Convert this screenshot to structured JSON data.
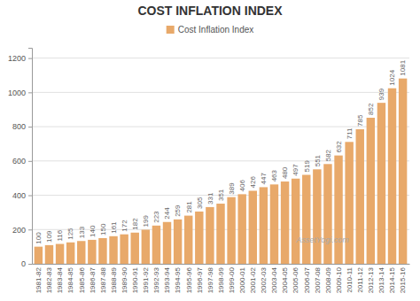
{
  "chart_data": {
    "type": "bar",
    "title": "COST INFLATION INDEX",
    "categories": [
      "1981-82",
      "1982-83",
      "1983-84",
      "1984-85",
      "1985-86",
      "1986-87",
      "1987-88",
      "1988-89",
      "1989-90",
      "1990-91",
      "1991-92",
      "1992-93",
      "1993-94",
      "1994-95",
      "1995-96",
      "1996-97",
      "1997-98",
      "1998-99",
      "1999-00",
      "2000-01",
      "2001-02",
      "2002-03",
      "2003-04",
      "2004-05",
      "2005-06",
      "2006-07",
      "2007-08",
      "2008-09",
      "2009-10",
      "2010-11",
      "2011-12",
      "2012-13",
      "2013-14",
      "2014-15",
      "2015-16"
    ],
    "series": [
      {
        "name": "Cost Inflation Index",
        "color": "#E8A96A",
        "values": [
          100,
          109,
          116,
          125,
          133,
          140,
          150,
          161,
          172,
          182,
          199,
          223,
          244,
          259,
          281,
          305,
          331,
          351,
          389,
          406,
          426,
          447,
          463,
          480,
          497,
          519,
          551,
          582,
          632,
          711,
          785,
          852,
          939,
          1024,
          1081
        ]
      }
    ],
    "ylim": [
      0,
      1260
    ],
    "yticks": [
      0,
      200,
      400,
      600,
      800,
      1000,
      1200
    ],
    "grid": true,
    "legend": "top",
    "data_labels": true,
    "annotations": [
      "AssetYogi.com"
    ]
  }
}
